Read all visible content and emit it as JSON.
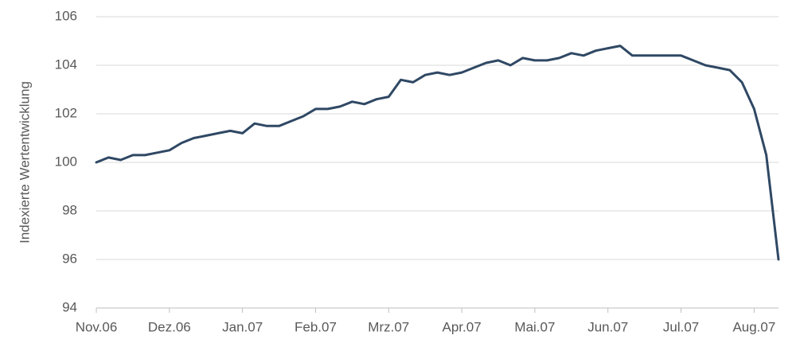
{
  "chart_data": {
    "type": "line",
    "y_label": "Indexierte Wertentwicklung",
    "categories": [
      "Nov.06",
      null,
      null,
      null,
      null,
      null,
      "Dez.06",
      null,
      null,
      null,
      null,
      null,
      "Jan.07",
      null,
      null,
      null,
      null,
      null,
      "Feb.07",
      null,
      null,
      null,
      null,
      null,
      "Mrz.07",
      null,
      null,
      null,
      null,
      null,
      "Apr.07",
      null,
      null,
      null,
      null,
      null,
      "Mai.07",
      null,
      null,
      null,
      null,
      null,
      "Jun.07",
      null,
      null,
      null,
      null,
      null,
      "Jul.07",
      null,
      null,
      null,
      null,
      null,
      "Aug.07",
      null,
      null
    ],
    "series": [
      {
        "color": "#2f4864",
        "values": [
          100.0,
          100.2,
          100.1,
          100.3,
          100.3,
          100.4,
          100.5,
          100.8,
          101.0,
          101.1,
          101.2,
          101.3,
          101.2,
          101.6,
          101.5,
          101.5,
          101.7,
          101.9,
          102.2,
          102.2,
          102.3,
          102.5,
          102.4,
          102.6,
          102.7,
          103.4,
          103.3,
          103.6,
          103.7,
          103.6,
          103.7,
          103.9,
          104.1,
          104.2,
          104.0,
          104.3,
          104.2,
          104.2,
          104.3,
          104.5,
          104.4,
          104.6,
          104.7,
          104.8,
          104.4,
          104.4,
          104.4,
          104.4,
          104.4,
          104.2,
          104.0,
          103.9,
          103.8,
          103.3,
          102.2,
          100.3,
          96.0
        ]
      }
    ],
    "ylim": [
      94,
      106
    ],
    "yticks": [
      94,
      96,
      98,
      100,
      102,
      104,
      106
    ],
    "grid": true
  }
}
